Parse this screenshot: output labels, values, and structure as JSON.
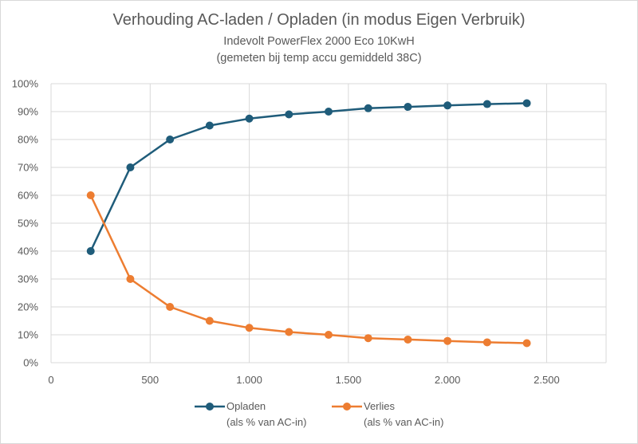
{
  "chart_data": {
    "type": "line",
    "title": "Verhouding AC-laden /  Opladen (in modus Eigen Verbruik)",
    "subtitle_lines": [
      "Indevolt PowerFlex 2000 Eco 10KwH",
      "(gemeten bij temp accu gemiddeld 38C)"
    ],
    "xlim": [
      0,
      2800
    ],
    "ylim": [
      0,
      100
    ],
    "x_ticks": [
      0,
      500,
      1000,
      1500,
      2000,
      2500
    ],
    "x_tick_labels": [
      "0",
      "500",
      "1.000",
      "1.500",
      "2.000",
      "2.500"
    ],
    "y_ticks": [
      0,
      10,
      20,
      30,
      40,
      50,
      60,
      70,
      80,
      90,
      100
    ],
    "y_tick_labels": [
      "0%",
      "10%",
      "20%",
      "30%",
      "40%",
      "50%",
      "60%",
      "70%",
      "80%",
      "90%",
      "100%"
    ],
    "grid": true,
    "legend_position": "bottom",
    "x": [
      200,
      400,
      600,
      800,
      1000,
      1200,
      1400,
      1600,
      1800,
      2000,
      2200,
      2400
    ],
    "series": [
      {
        "name": "Opladen",
        "name_line2": "(als % van AC-in)",
        "color": "#1f5c7a",
        "values": [
          40,
          70,
          80,
          85,
          87.5,
          89,
          90,
          91.2,
          91.7,
          92.2,
          92.7,
          93
        ]
      },
      {
        "name": "Verlies",
        "name_line2": "(als % van AC-in)",
        "color": "#ed7d31",
        "values": [
          60,
          30,
          20,
          15,
          12.5,
          11,
          10,
          8.8,
          8.3,
          7.8,
          7.3,
          7
        ]
      }
    ]
  }
}
